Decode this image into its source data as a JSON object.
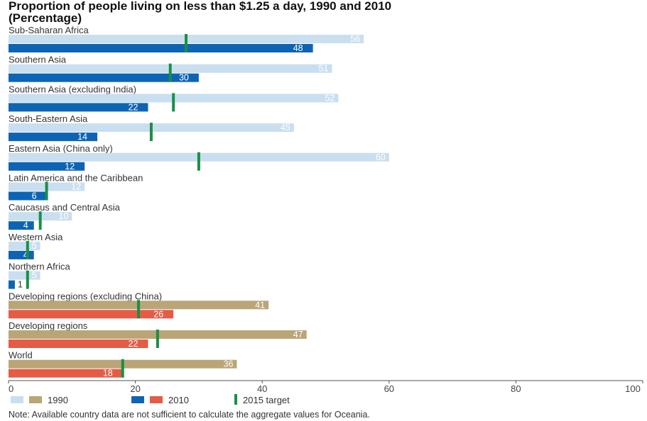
{
  "title_line1": "Proportion of people living on less than $1.25 a day, 1990 and 2010",
  "title_line2": "(Percentage)",
  "note": "Note: Available country data are not sufficient to calculate the aggregate values for Oceania.",
  "colors": {
    "region_1990": "#c9dff0",
    "region_2010": "#0e64b4",
    "agg_1990": "#baa577",
    "agg_2010": "#e45c45",
    "target": "#1a8f45",
    "axis": "#555555",
    "label_light": "#ffffff",
    "label_dark": "#333333"
  },
  "chart_data": {
    "type": "bar",
    "orientation": "horizontal",
    "xlim": [
      0,
      100
    ],
    "xticks": [
      "0",
      "20",
      "40",
      "60",
      "80",
      "100"
    ],
    "categories": [
      "Sub-Saharan Africa",
      "Southern Asia",
      "Southern Asia (excluding India)",
      "South-Eastern Asia",
      "Eastern Asia (China only)",
      "Latin America and the Caribbean",
      "Caucasus and Central Asia",
      "Western Asia",
      "Northern Africa",
      "Developing regions (excluding China)",
      "Developing regions",
      "World"
    ],
    "series": [
      {
        "name": "1990",
        "values": [
          56,
          51,
          52,
          45,
          60,
          12,
          10,
          5,
          5,
          41,
          47,
          36
        ]
      },
      {
        "name": "2010",
        "values": [
          48,
          30,
          22,
          14,
          12,
          6,
          4,
          4,
          1,
          26,
          22,
          18
        ]
      },
      {
        "name": "2015 target",
        "values": [
          28,
          25.5,
          26,
          22.5,
          30,
          6,
          5,
          3,
          3,
          20.5,
          23.5,
          18
        ]
      }
    ],
    "aggregate_categories": [
      "Developing regions (excluding China)",
      "Developing regions",
      "World"
    ],
    "legend": [
      {
        "label": "1990"
      },
      {
        "label": "2010"
      },
      {
        "label": "2015 target"
      }
    ]
  }
}
